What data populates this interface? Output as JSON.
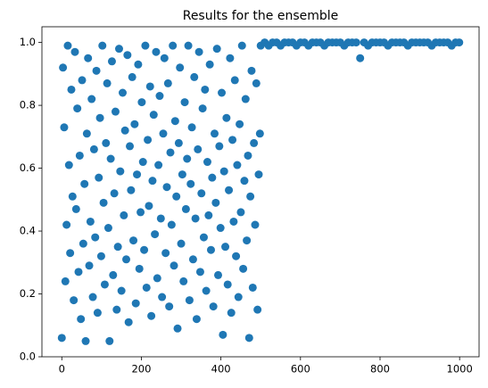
{
  "chart_data": {
    "type": "scatter",
    "title": "Results for the ensemble",
    "xlim": [
      -49.95,
      1048.95
    ],
    "xticks": [
      0,
      200,
      400,
      600,
      800,
      1000
    ],
    "ylim": [
      0,
      1.05
    ],
    "yticks": [
      {
        "value": 0,
        "label": "0.0"
      },
      0.2,
      0.4,
      0.6,
      0.8,
      {
        "value": 1,
        "label": "1.0"
      }
    ],
    "color": "#1f77b4",
    "x": [
      0,
      3,
      6,
      9,
      12,
      15,
      18,
      21,
      24,
      27,
      30,
      33,
      36,
      39,
      42,
      45,
      48,
      51,
      54,
      57,
      60,
      63,
      66,
      69,
      72,
      75,
      78,
      81,
      84,
      87,
      90,
      93,
      96,
      99,
      102,
      105,
      108,
      111,
      114,
      117,
      120,
      123,
      126,
      129,
      132,
      135,
      138,
      141,
      144,
      147,
      150,
      153,
      156,
      159,
      162,
      165,
      168,
      171,
      174,
      177,
      180,
      183,
      186,
      189,
      192,
      195,
      198,
      201,
      204,
      207,
      210,
      213,
      216,
      219,
      222,
      225,
      228,
      231,
      234,
      237,
      240,
      243,
      246,
      249,
      252,
      255,
      258,
      261,
      264,
      267,
      270,
      273,
      276,
      279,
      282,
      285,
      288,
      291,
      294,
      297,
      300,
      303,
      306,
      309,
      312,
      315,
      318,
      321,
      324,
      327,
      330,
      333,
      336,
      339,
      342,
      345,
      348,
      351,
      354,
      357,
      360,
      363,
      366,
      369,
      372,
      375,
      378,
      381,
      384,
      387,
      390,
      393,
      396,
      399,
      402,
      405,
      408,
      411,
      414,
      417,
      420,
      423,
      426,
      429,
      432,
      435,
      438,
      441,
      444,
      447,
      450,
      453,
      456,
      459,
      462,
      465,
      468,
      471,
      474,
      477,
      480,
      483,
      486,
      489,
      492,
      495,
      498,
      500,
      510,
      520,
      530,
      540,
      550,
      560,
      570,
      580,
      590,
      600,
      610,
      620,
      630,
      640,
      650,
      660,
      670,
      680,
      690,
      700,
      710,
      720,
      730,
      740,
      750,
      760,
      770,
      780,
      790,
      800,
      810,
      820,
      830,
      840,
      850,
      860,
      870,
      880,
      890,
      900,
      910,
      920,
      930,
      940,
      950,
      960,
      970,
      980,
      990,
      999
    ],
    "values": [
      0.06,
      0.92,
      0.73,
      0.24,
      0.42,
      0.99,
      0.61,
      0.33,
      0.85,
      0.51,
      0.18,
      0.97,
      0.47,
      0.79,
      0.27,
      0.64,
      0.12,
      0.88,
      0.36,
      0.55,
      0.05,
      0.71,
      0.95,
      0.29,
      0.43,
      0.82,
      0.19,
      0.66,
      0.38,
      0.91,
      0.14,
      0.57,
      0.76,
      0.32,
      0.99,
      0.49,
      0.23,
      0.68,
      0.87,
      0.41,
      0.05,
      0.63,
      0.94,
      0.26,
      0.52,
      0.78,
      0.15,
      0.35,
      0.98,
      0.59,
      0.21,
      0.84,
      0.45,
      0.72,
      0.31,
      0.96,
      0.11,
      0.67,
      0.53,
      0.89,
      0.37,
      0.74,
      0.17,
      0.58,
      0.93,
      0.28,
      0.46,
      0.81,
      0.62,
      0.34,
      0.99,
      0.22,
      0.69,
      0.48,
      0.86,
      0.13,
      0.56,
      0.77,
      0.39,
      0.97,
      0.25,
      0.61,
      0.83,
      0.44,
      0.19,
      0.71,
      0.95,
      0.33,
      0.54,
      0.87,
      0.16,
      0.65,
      0.42,
      0.99,
      0.29,
      0.75,
      0.51,
      0.09,
      0.68,
      0.92,
      0.36,
      0.58,
      0.24,
      0.81,
      0.47,
      0.63,
      0.99,
      0.18,
      0.55,
      0.73,
      0.31,
      0.89,
      0.44,
      0.12,
      0.66,
      0.97,
      0.27,
      0.52,
      0.79,
      0.38,
      0.85,
      0.21,
      0.62,
      0.45,
      0.93,
      0.34,
      0.57,
      0.16,
      0.71,
      0.49,
      0.98,
      0.26,
      0.67,
      0.41,
      0.84,
      0.07,
      0.59,
      0.35,
      0.76,
      0.23,
      0.53,
      0.95,
      0.14,
      0.69,
      0.43,
      0.88,
      0.32,
      0.61,
      0.19,
      0.74,
      0.46,
      0.99,
      0.28,
      0.56,
      0.82,
      0.37,
      0.64,
      0.06,
      0.51,
      0.91,
      0.22,
      0.68,
      0.42,
      0.87,
      0.15,
      0.58,
      0.71,
      0.99,
      1,
      0.99,
      1,
      1,
      0.99,
      1,
      1,
      1,
      0.99,
      1,
      1,
      0.99,
      1,
      1,
      1,
      0.99,
      1,
      1,
      1,
      1,
      0.99,
      1,
      1,
      1,
      0.95,
      1,
      0.99,
      1,
      1,
      1,
      1,
      0.99,
      1,
      1,
      1,
      1,
      0.99,
      1,
      1,
      1,
      1,
      1,
      0.99,
      1,
      1,
      1,
      1,
      0.99,
      1,
      1
    ]
  }
}
